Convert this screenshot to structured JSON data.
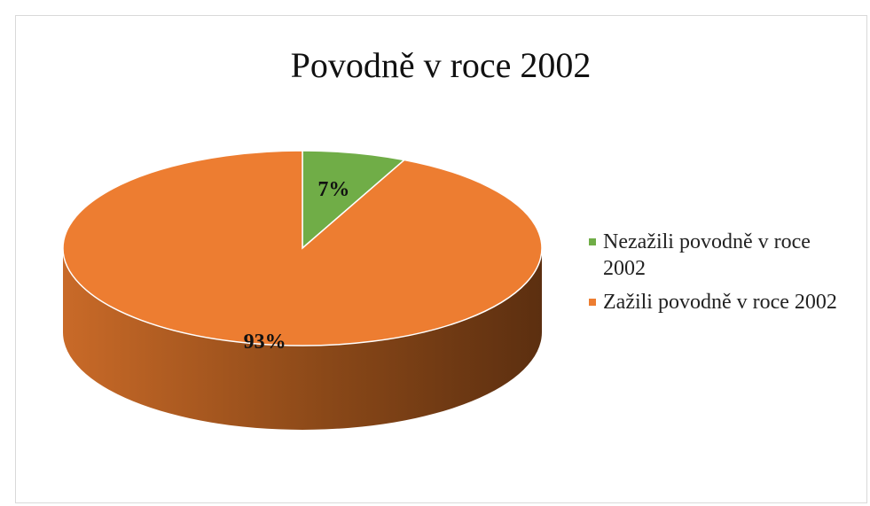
{
  "chart_data": {
    "type": "pie",
    "title": "Povodně v roce 2002",
    "categories": [
      "Nezažili povodně v roce 2002",
      "Zažili povodně v roce 2002"
    ],
    "values": [
      7,
      93
    ],
    "value_labels": [
      "7%",
      "93%"
    ],
    "colors": [
      "#70ad47",
      "#ed7d31"
    ],
    "legend": "right"
  }
}
